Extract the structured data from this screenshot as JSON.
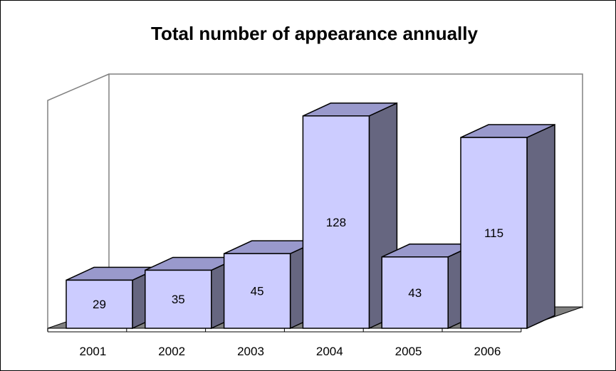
{
  "chart_data": {
    "type": "bar",
    "title": "Total number of appearance annually",
    "xlabel": "",
    "ylabel": "",
    "categories": [
      "2001",
      "2002",
      "2003",
      "2004",
      "2005",
      "2006"
    ],
    "values": [
      29,
      35,
      45,
      128,
      43,
      115
    ],
    "ylim": [
      0,
      140
    ],
    "grid": false,
    "legend": "none",
    "colors": {
      "bar_front": "#CCCCFF",
      "bar_top": "#9999CC",
      "bar_side": "#666680",
      "floor": "#808080",
      "walls": "#808080",
      "outline": "#000000"
    }
  }
}
